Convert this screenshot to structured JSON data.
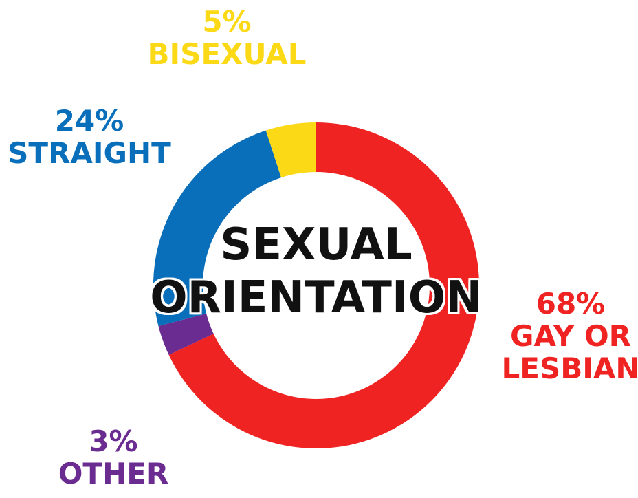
{
  "chart_data": {
    "type": "donut",
    "title": "SEXUAL ORIENTATION",
    "categories": [
      "GAY OR LESBIAN",
      "OTHER",
      "STRAIGHT",
      "BISEXUAL"
    ],
    "values": [
      68,
      3,
      24,
      5
    ],
    "value_labels": [
      "68%",
      "3%",
      "24%",
      "5%"
    ],
    "colors": [
      "#ee2322",
      "#6a2c91",
      "#0a6fba",
      "#fcd916"
    ]
  }
}
